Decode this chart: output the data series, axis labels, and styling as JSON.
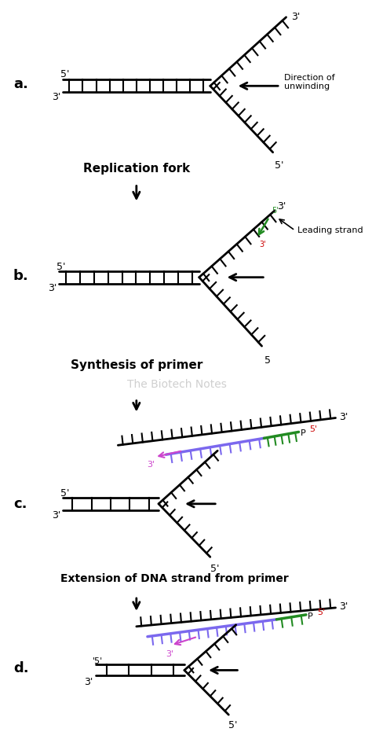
{
  "bg_color": "#ffffff",
  "fork_color": "#000000",
  "primer_color": "#7B68EE",
  "leading_green": "#228B22",
  "pink_arrow": "#cc44cc",
  "caption_a": "Replication fork",
  "caption_b": "Synthesis of primer",
  "caption_c": "Extension of DNA strand from primer",
  "watermark": "The Biotech Notes",
  "lw": 2.0,
  "tick_lw": 1.5
}
